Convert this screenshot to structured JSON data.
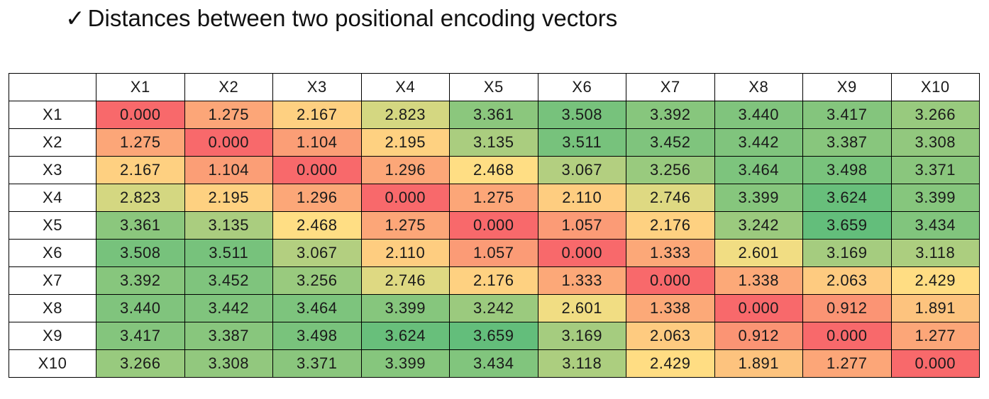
{
  "title": {
    "check_icon": "✓",
    "text": "Distances between two positional encoding vectors"
  },
  "chart_data": {
    "type": "heatmap",
    "title": "Distances between two positional encoding vectors",
    "x_labels": [
      "X1",
      "X2",
      "X3",
      "X4",
      "X5",
      "X6",
      "X7",
      "X8",
      "X9",
      "X10"
    ],
    "y_labels": [
      "X1",
      "X2",
      "X3",
      "X4",
      "X5",
      "X6",
      "X7",
      "X8",
      "X9",
      "X10"
    ],
    "values": [
      [
        "0.000",
        "1.275",
        "2.167",
        "2.823",
        "3.361",
        "3.508",
        "3.392",
        "3.440",
        "3.417",
        "3.266"
      ],
      [
        "1.275",
        "0.000",
        "1.104",
        "2.195",
        "3.135",
        "3.511",
        "3.452",
        "3.442",
        "3.387",
        "3.308"
      ],
      [
        "2.167",
        "1.104",
        "0.000",
        "1.296",
        "2.468",
        "3.067",
        "3.256",
        "3.464",
        "3.498",
        "3.371"
      ],
      [
        "2.823",
        "2.195",
        "1.296",
        "0.000",
        "1.275",
        "2.110",
        "2.746",
        "3.399",
        "3.624",
        "3.399"
      ],
      [
        "3.361",
        "3.135",
        "2.468",
        "1.275",
        "0.000",
        "1.057",
        "2.176",
        "3.242",
        "3.659",
        "3.434"
      ],
      [
        "3.508",
        "3.511",
        "3.067",
        "2.110",
        "1.057",
        "0.000",
        "1.333",
        "2.601",
        "3.169",
        "3.118"
      ],
      [
        "3.392",
        "3.452",
        "3.256",
        "2.746",
        "2.176",
        "1.333",
        "0.000",
        "1.338",
        "2.063",
        "2.429"
      ],
      [
        "3.440",
        "3.442",
        "3.464",
        "3.399",
        "3.242",
        "2.601",
        "1.338",
        "0.000",
        "0.912",
        "1.891"
      ],
      [
        "3.417",
        "3.387",
        "3.498",
        "3.624",
        "3.659",
        "3.169",
        "2.063",
        "0.912",
        "0.000",
        "1.277"
      ],
      [
        "3.266",
        "3.308",
        "3.371",
        "3.399",
        "3.434",
        "3.118",
        "2.429",
        "1.891",
        "1.277",
        "0.000"
      ]
    ],
    "color_scale": {
      "low": "#f8696b",
      "mid": "#ffe084",
      "high": "#63be7b",
      "min": 0.0,
      "mid_value": 2.5,
      "max": 3.659
    }
  }
}
